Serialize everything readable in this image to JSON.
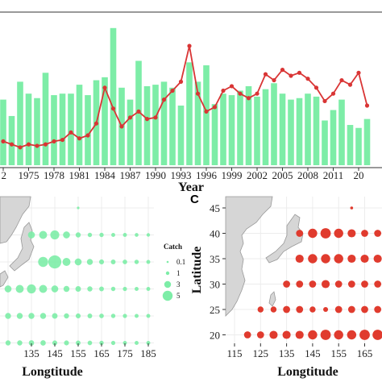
{
  "chart_data": [
    {
      "panel": "top",
      "type": "bar+line",
      "xlabel": "Year",
      "x_tick_labels": [
        "2",
        "1975",
        "1978",
        "1981",
        "1984",
        "1987",
        "1990",
        "1993",
        "1996",
        "1999",
        "2002",
        "2005",
        "2008",
        "2011",
        "20"
      ],
      "years": [
        1972,
        1973,
        1974,
        1975,
        1976,
        1977,
        1978,
        1979,
        1980,
        1981,
        1982,
        1983,
        1984,
        1985,
        1986,
        1987,
        1988,
        1989,
        1990,
        1991,
        1992,
        1993,
        1994,
        1995,
        1996,
        1997,
        1998,
        1999,
        2000,
        2001,
        2002,
        2003,
        2004,
        2005,
        2006,
        2007,
        2008,
        2009,
        2010,
        2011,
        2012,
        2013,
        2014,
        2015
      ],
      "bar_values": [
        44,
        33,
        56,
        48,
        45,
        62,
        47,
        48,
        48,
        54,
        47,
        57,
        59,
        92,
        52,
        44,
        70,
        53,
        54,
        56,
        52,
        40,
        69,
        56,
        67,
        41,
        48,
        47,
        50,
        53,
        46,
        51,
        55,
        48,
        44,
        45,
        48,
        46,
        30,
        37,
        44,
        27,
        25,
        31
      ],
      "line_values": [
        16,
        14,
        12,
        14,
        13,
        14,
        16,
        17,
        22,
        18,
        20,
        28,
        52,
        38,
        26,
        32,
        36,
        31,
        32,
        44,
        50,
        56,
        80,
        48,
        36,
        39,
        50,
        53,
        48,
        45,
        48,
        61,
        57,
        64,
        60,
        62,
        58,
        52,
        43,
        48,
        57,
        54,
        62,
        40
      ],
      "bar_color": "#7deda7",
      "line_color": "#d93535"
    },
    {
      "panel": "left-map",
      "type": "scatter",
      "xlabel": "Longtitude",
      "x_ticks": [
        135,
        145,
        155,
        165,
        175,
        185
      ],
      "legend_title": "Catch",
      "legend": [
        {
          "label": "0.1",
          "size": 0.1
        },
        {
          "label": "1",
          "size": 1
        },
        {
          "label": "3",
          "size": 3
        },
        {
          "label": "5",
          "size": 5
        }
      ],
      "points": [
        {
          "lon": 135,
          "lat": 40,
          "size": 2.5
        },
        {
          "lon": 140,
          "lat": 40,
          "size": 3
        },
        {
          "lon": 145,
          "lat": 40,
          "size": 3.5
        },
        {
          "lon": 150,
          "lat": 40,
          "size": 2.5
        },
        {
          "lon": 155,
          "lat": 40,
          "size": 1.6
        },
        {
          "lon": 160,
          "lat": 40,
          "size": 1.2
        },
        {
          "lon": 165,
          "lat": 40,
          "size": 1.2
        },
        {
          "lon": 170,
          "lat": 40,
          "size": 1
        },
        {
          "lon": 175,
          "lat": 40,
          "size": 1
        },
        {
          "lon": 180,
          "lat": 40,
          "size": 0.9
        },
        {
          "lon": 185,
          "lat": 40,
          "size": 0.8
        },
        {
          "lon": 155,
          "lat": 45,
          "size": 0.3
        },
        {
          "lon": 140,
          "lat": 35,
          "size": 4
        },
        {
          "lon": 145,
          "lat": 35,
          "size": 5.5
        },
        {
          "lon": 150,
          "lat": 35,
          "size": 3
        },
        {
          "lon": 155,
          "lat": 35,
          "size": 2.5
        },
        {
          "lon": 160,
          "lat": 35,
          "size": 2
        },
        {
          "lon": 165,
          "lat": 35,
          "size": 1.5
        },
        {
          "lon": 170,
          "lat": 35,
          "size": 1.4
        },
        {
          "lon": 175,
          "lat": 35,
          "size": 1.3
        },
        {
          "lon": 180,
          "lat": 35,
          "size": 1.2
        },
        {
          "lon": 185,
          "lat": 35,
          "size": 1
        },
        {
          "lon": 125,
          "lat": 30,
          "size": 2.5
        },
        {
          "lon": 130,
          "lat": 30,
          "size": 3
        },
        {
          "lon": 135,
          "lat": 30,
          "size": 3.5
        },
        {
          "lon": 140,
          "lat": 30,
          "size": 3
        },
        {
          "lon": 145,
          "lat": 30,
          "size": 2.5
        },
        {
          "lon": 150,
          "lat": 30,
          "size": 2
        },
        {
          "lon": 155,
          "lat": 30,
          "size": 1.8
        },
        {
          "lon": 160,
          "lat": 30,
          "size": 1.6
        },
        {
          "lon": 165,
          "lat": 30,
          "size": 1.4
        },
        {
          "lon": 170,
          "lat": 30,
          "size": 1.2
        },
        {
          "lon": 175,
          "lat": 30,
          "size": 1.1
        },
        {
          "lon": 180,
          "lat": 30,
          "size": 1
        },
        {
          "lon": 185,
          "lat": 30,
          "size": 1
        },
        {
          "lon": 125,
          "lat": 25,
          "size": 2
        },
        {
          "lon": 130,
          "lat": 25,
          "size": 2
        },
        {
          "lon": 135,
          "lat": 25,
          "size": 2
        },
        {
          "lon": 140,
          "lat": 25,
          "size": 2
        },
        {
          "lon": 145,
          "lat": 25,
          "size": 1.8
        },
        {
          "lon": 150,
          "lat": 25,
          "size": 1.6
        },
        {
          "lon": 155,
          "lat": 25,
          "size": 1.5
        },
        {
          "lon": 160,
          "lat": 25,
          "size": 1.4
        },
        {
          "lon": 165,
          "lat": 25,
          "size": 1.3
        },
        {
          "lon": 170,
          "lat": 25,
          "size": 1.2
        },
        {
          "lon": 175,
          "lat": 25,
          "size": 1.1
        },
        {
          "lon": 180,
          "lat": 25,
          "size": 1
        },
        {
          "lon": 185,
          "lat": 25,
          "size": 1
        },
        {
          "lon": 125,
          "lat": 20,
          "size": 1.6
        },
        {
          "lon": 130,
          "lat": 20,
          "size": 1.6
        },
        {
          "lon": 135,
          "lat": 20,
          "size": 1.7
        },
        {
          "lon": 140,
          "lat": 20,
          "size": 1.7
        },
        {
          "lon": 145,
          "lat": 20,
          "size": 1.5
        },
        {
          "lon": 150,
          "lat": 20,
          "size": 1.5
        },
        {
          "lon": 155,
          "lat": 20,
          "size": 1.4
        },
        {
          "lon": 160,
          "lat": 20,
          "size": 1.3
        },
        {
          "lon": 165,
          "lat": 20,
          "size": 1.2
        },
        {
          "lon": 170,
          "lat": 20,
          "size": 1.1
        },
        {
          "lon": 175,
          "lat": 20,
          "size": 1
        },
        {
          "lon": 180,
          "lat": 20,
          "size": 1
        },
        {
          "lon": 185,
          "lat": 20,
          "size": 1
        }
      ],
      "point_color": "#7deda7"
    },
    {
      "panel": "right-map",
      "panel_label": "C",
      "type": "scatter",
      "xlabel": "Longtitude",
      "ylabel": "Latitude",
      "x_ticks": [
        115,
        125,
        135,
        145,
        155,
        165
      ],
      "y_ticks": [
        20,
        25,
        30,
        35,
        40,
        45
      ],
      "points": [
        {
          "lon": 160,
          "lat": 45,
          "size": 0.6
        },
        {
          "lon": 140,
          "lat": 40,
          "size": 2.5
        },
        {
          "lon": 145,
          "lat": 40,
          "size": 3.5
        },
        {
          "lon": 150,
          "lat": 40,
          "size": 4
        },
        {
          "lon": 155,
          "lat": 40,
          "size": 3.5
        },
        {
          "lon": 160,
          "lat": 40,
          "size": 3
        },
        {
          "lon": 165,
          "lat": 40,
          "size": 2.5
        },
        {
          "lon": 170,
          "lat": 40,
          "size": 2.5
        },
        {
          "lon": 140,
          "lat": 35,
          "size": 3
        },
        {
          "lon": 145,
          "lat": 35,
          "size": 3.5
        },
        {
          "lon": 150,
          "lat": 35,
          "size": 3.5
        },
        {
          "lon": 155,
          "lat": 35,
          "size": 3.5
        },
        {
          "lon": 160,
          "lat": 35,
          "size": 3
        },
        {
          "lon": 165,
          "lat": 35,
          "size": 3
        },
        {
          "lon": 170,
          "lat": 35,
          "size": 3
        },
        {
          "lon": 135,
          "lat": 30,
          "size": 2.5
        },
        {
          "lon": 140,
          "lat": 30,
          "size": 2.5
        },
        {
          "lon": 145,
          "lat": 30,
          "size": 2.5
        },
        {
          "lon": 150,
          "lat": 30,
          "size": 3
        },
        {
          "lon": 155,
          "lat": 30,
          "size": 2.5
        },
        {
          "lon": 160,
          "lat": 30,
          "size": 2.5
        },
        {
          "lon": 165,
          "lat": 30,
          "size": 2.5
        },
        {
          "lon": 170,
          "lat": 30,
          "size": 2.5
        },
        {
          "lon": 125,
          "lat": 25,
          "size": 2
        },
        {
          "lon": 130,
          "lat": 25,
          "size": 2
        },
        {
          "lon": 135,
          "lat": 25,
          "size": 2.5
        },
        {
          "lon": 140,
          "lat": 25,
          "size": 2.5
        },
        {
          "lon": 145,
          "lat": 25,
          "size": 2
        },
        {
          "lon": 150,
          "lat": 25,
          "size": 1.5
        },
        {
          "lon": 155,
          "lat": 25,
          "size": 2.5
        },
        {
          "lon": 160,
          "lat": 25,
          "size": 2.5
        },
        {
          "lon": 165,
          "lat": 25,
          "size": 2.5
        },
        {
          "lon": 170,
          "lat": 25,
          "size": 2.5
        },
        {
          "lon": 120,
          "lat": 20,
          "size": 2.5
        },
        {
          "lon": 125,
          "lat": 20,
          "size": 2.5
        },
        {
          "lon": 130,
          "lat": 20,
          "size": 3
        },
        {
          "lon": 135,
          "lat": 20,
          "size": 3
        },
        {
          "lon": 140,
          "lat": 20,
          "size": 3
        },
        {
          "lon": 145,
          "lat": 20,
          "size": 3.5
        },
        {
          "lon": 150,
          "lat": 20,
          "size": 4
        },
        {
          "lon": 155,
          "lat": 20,
          "size": 3.5
        },
        {
          "lon": 160,
          "lat": 20,
          "size": 3.5
        },
        {
          "lon": 165,
          "lat": 20,
          "size": 4
        },
        {
          "lon": 170,
          "lat": 20,
          "size": 4
        }
      ],
      "point_color": "#e03b2e"
    }
  ]
}
